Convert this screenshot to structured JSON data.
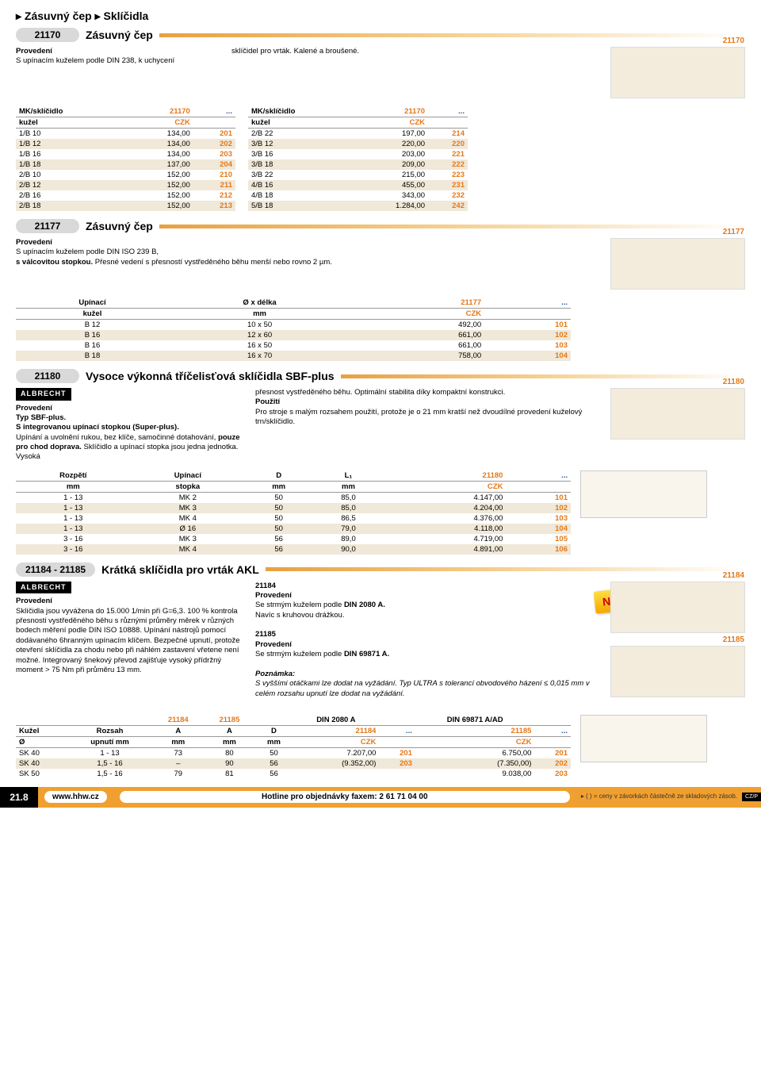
{
  "page_title": "▸ Zásuvný čep ▸ Sklíčidla",
  "s21170": {
    "code": "21170",
    "title": "Zásuvný čep",
    "prov_label": "Provedení",
    "prov_text": "S upínacím kuželem podle DIN 238, k uchycení",
    "right_text": "sklíčidel pro vrták. Kalené a broušené.",
    "img_label": "21170",
    "tbl1": {
      "h1": "MK/sklíčidlo",
      "h2": "21170",
      "h3": "...",
      "sub": "kužel",
      "ccy": "CZK"
    },
    "rows1": [
      [
        "1/B 10",
        "134,00",
        "201"
      ],
      [
        "1/B 12",
        "134,00",
        "202"
      ],
      [
        "1/B 16",
        "134,00",
        "203"
      ],
      [
        "1/B 18",
        "137,00",
        "204"
      ],
      [
        "2/B 10",
        "152,00",
        "210"
      ],
      [
        "2/B 12",
        "152,00",
        "211"
      ],
      [
        "2/B 16",
        "152,00",
        "212"
      ],
      [
        "2/B 18",
        "152,00",
        "213"
      ]
    ],
    "tbl2": {
      "h1": "MK/sklíčidlo",
      "h2": "21170",
      "h3": "...",
      "sub": "kužel",
      "ccy": "CZK"
    },
    "rows2": [
      [
        "2/B 22",
        "197,00",
        "214"
      ],
      [
        "3/B 12",
        "220,00",
        "220"
      ],
      [
        "3/B 16",
        "203,00",
        "221"
      ],
      [
        "3/B 18",
        "209,00",
        "222"
      ],
      [
        "3/B 22",
        "215,00",
        "223"
      ],
      [
        "4/B 16",
        "455,00",
        "231"
      ],
      [
        "4/B 18",
        "343,00",
        "232"
      ],
      [
        "5/B 18",
        "1.284,00",
        "242"
      ]
    ]
  },
  "s21177": {
    "code": "21177",
    "title": "Zásuvný čep",
    "prov_label": "Provedení",
    "prov_text_a": "S upínacím kuželem podle DIN ISO 239 B,",
    "prov_text_b": "s válcovitou stopkou.",
    "prov_text_c": " Přesné vedení s přesností vystředěného běhu menší nebo rovno 2 µm.",
    "img_label": "21177",
    "th": [
      "Upínací",
      "Ø x délka",
      "21177",
      "..."
    ],
    "sub": [
      "kužel",
      "mm",
      "CZK",
      ""
    ],
    "rows": [
      [
        "B 12",
        "10 x 50",
        "492,00",
        "101"
      ],
      [
        "B 16",
        "12 x 60",
        "661,00",
        "102"
      ],
      [
        "B 16",
        "16 x 50",
        "661,00",
        "103"
      ],
      [
        "B 18",
        "16 x 70",
        "758,00",
        "104"
      ]
    ]
  },
  "s21180": {
    "code": "21180",
    "title": "Vysoce výkonná tříčelisťová sklíčidla SBF-plus",
    "brand": "ALBRECHT",
    "prov_label": "Provedení",
    "left_a": "Typ SBF-plus.",
    "left_b": "S integrovanou upínací stopkou (Super-plus).",
    "left_c": "Upínání a uvolnění rukou, bez klíče, samočinné dotahování, ",
    "left_c2": "pouze pro chod doprava.",
    "left_d": " Sklíčidlo a upínací stopka jsou jedna jednotka.",
    "left_e": " Vysoká",
    "right_a": "přesnost vystředěného běhu. Optimální stabilita díky kompaktní konstrukci.",
    "right_b_label": "Použití",
    "right_b": "Pro stroje s malým rozsahem použití, protože je o 21 mm kratší než dvoudílné provedení kuželový trn/sklíčidlo.",
    "img_label": "21180",
    "th": [
      "Rozpětí",
      "Upínací",
      "D",
      "L₁",
      "21180",
      "..."
    ],
    "sub": [
      "mm",
      "stopka",
      "mm",
      "mm",
      "CZK",
      ""
    ],
    "rows": [
      [
        "1 - 13",
        "MK 2",
        "50",
        "85,0",
        "4.147,00",
        "101"
      ],
      [
        "1 - 13",
        "MK 3",
        "50",
        "85,0",
        "4.204,00",
        "102"
      ],
      [
        "1 - 13",
        "MK 4",
        "50",
        "86,5",
        "4.376,00",
        "103"
      ],
      [
        "1 - 13",
        "Ø 16",
        "50",
        "79,0",
        "4.118,00",
        "104"
      ],
      [
        "3 - 16",
        "MK 3",
        "56",
        "89,0",
        "4.719,00",
        "105"
      ],
      [
        "3 - 16",
        "MK 4",
        "56",
        "90,0",
        "4.891,00",
        "106"
      ]
    ]
  },
  "s21184": {
    "code": "21184 - 21185",
    "title": "Krátká sklíčidla pro vrták AKL",
    "brand": "ALBRECHT",
    "prov_label": "Provedení",
    "left": "Sklíčidla jsou vyvážena do 15.000 1/min při G=6,3. 100 % kontrola přesnosti vystředěného běhu s různými průměry měrek v různých bodech měření podle DIN ISO 10888. Upínání nástrojů pomocí dodávaného 6hranným upínacím klíčem. Bezpečné upnutí, protože otevření sklíčidla za chodu nebo při náhlém zastavení vřetene není možné. Integrovaný šnekový převod zajišťuje vysoký přídržný moment > 75 Nm při průměru 13 mm.",
    "r1_code": "21184",
    "r1_label": "Provedení",
    "r1_text_a": "Se strmým kuželem podle ",
    "r1_text_b": "DIN 2080 A.",
    "r1_text_c": "Navíc s kruhovou drážkou.",
    "r2_code": "21185",
    "r2_label": "Provedení",
    "r2_text_a": "Se strmým kuželem podle ",
    "r2_text_b": "DIN 69871 A.",
    "note_label": "Poznámka:",
    "note_text": "S vyššími otáčkami lze dodat na vyžádání. Typ ULTRA s tolerancí obvodového házení ≤ 0,015 mm v celém rozsahu upnutí lze dodat na vyžádání.",
    "new": "NEW",
    "img_label1": "21184",
    "img_label2": "21185",
    "th": [
      "",
      "",
      "21184",
      "21185",
      "",
      "DIN 2080 A",
      "",
      "DIN 69871 A/AD",
      ""
    ],
    "th2": [
      "Kužel",
      "Rozsah",
      "A",
      "A",
      "D",
      "21184",
      "...",
      "21185",
      "..."
    ],
    "sub": [
      "Ø",
      "upnutí mm",
      "mm",
      "mm",
      "mm",
      "CZK",
      "",
      "CZK",
      ""
    ],
    "rows": [
      [
        "SK 40",
        "1 - 13",
        "73",
        "80",
        "50",
        "7.207,00",
        "201",
        "6.750,00",
        "201"
      ],
      [
        "SK 40",
        "1,5 - 16",
        "–",
        "90",
        "56",
        "(9.352,00)",
        "203",
        "(7.350,00)",
        "202"
      ],
      [
        "SK 50",
        "1,5 - 16",
        "79",
        "81",
        "56",
        "",
        "",
        "9.038,00",
        "203"
      ]
    ]
  },
  "footer": {
    "page": "21.8",
    "url": "www.hhw.cz",
    "hotline": "Hotline pro objednávky faxem: 2 61 71 04 00",
    "note": "( ) = ceny v závorkách částečně ze skladových zásob.",
    "czp": "CZ/P"
  }
}
